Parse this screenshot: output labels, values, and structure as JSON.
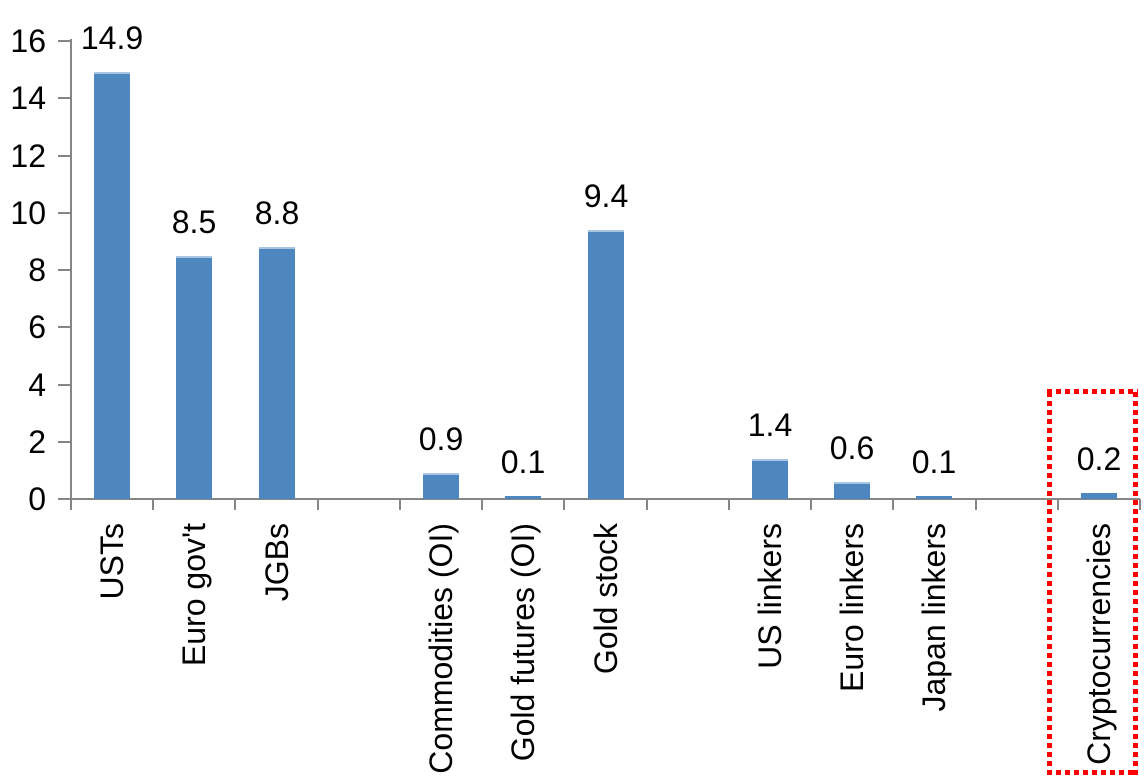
{
  "chart_data": {
    "type": "bar",
    "title": "",
    "xlabel": "",
    "ylabel": "",
    "categories": [
      "USTs",
      "Euro gov't",
      "JGBs",
      "Commodities (OI)",
      "Gold futures (OI)",
      "Gold stock",
      "US linkers",
      "Euro linkers",
      "Japan linkers",
      "Cryptocurrencies"
    ],
    "values": [
      14.9,
      8.5,
      8.8,
      0.9,
      0.1,
      9.4,
      1.4,
      0.6,
      0.1,
      0.2
    ],
    "data_labels": [
      "14.9",
      "8.5",
      "8.8",
      "0.9",
      "0.1",
      "9.4",
      "1.4",
      "0.6",
      "0.1",
      "0.2"
    ],
    "slot_positions": [
      1,
      2,
      3,
      5,
      6,
      7,
      9,
      10,
      11,
      13
    ],
    "total_slots": 13,
    "ylim": [
      0,
      16
    ],
    "ytick_step": 2,
    "ytick_labels": [
      "0",
      "2",
      "4",
      "6",
      "8",
      "10",
      "12",
      "14",
      "16"
    ],
    "grid": false,
    "legend": false,
    "category_label_rotation_deg": 90,
    "bar_color": "#4E87BF",
    "bar_top_edge_color": "#A8C6E1",
    "axis_color": "#868686",
    "text_color": "#000000",
    "highlight": {
      "category": "Cryptocurrencies",
      "value_label": "0.2",
      "shape": "dotted-rectangle",
      "color": "#FF0000"
    }
  }
}
